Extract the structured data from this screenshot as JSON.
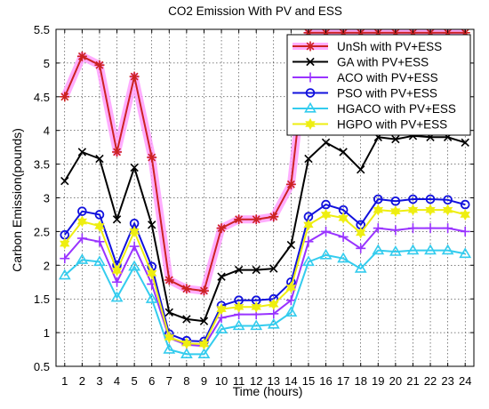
{
  "chart_data": {
    "type": "line",
    "title": "CO2 Emission With PV and ESS",
    "xlabel": "Time (hours)",
    "ylabel": "Carbon Emission(pounds)",
    "xlim": [
      0.5,
      24.5
    ],
    "ylim": [
      0.5,
      5.5
    ],
    "x": [
      1,
      2,
      3,
      4,
      5,
      6,
      7,
      8,
      9,
      10,
      11,
      12,
      13,
      14,
      15,
      16,
      17,
      18,
      19,
      20,
      21,
      22,
      23,
      24
    ],
    "xticks": [
      "1",
      "2",
      "3",
      "4",
      "5",
      "6",
      "7",
      "8",
      "9",
      "10",
      "11",
      "12",
      "13",
      "14",
      "15",
      "16",
      "17",
      "18",
      "19",
      "20",
      "21",
      "22",
      "23",
      "24"
    ],
    "yticks": [
      "0.5",
      "1",
      "1.5",
      "2",
      "2.5",
      "3",
      "3.5",
      "4",
      "4.5",
      "5",
      "5.5"
    ],
    "grid": true,
    "legend_position": "top-right",
    "series": [
      {
        "name": "UnSh with PV+ESS",
        "color": "#cc2222",
        "glow": "#ff99ff",
        "marker": "asterisk",
        "values": [
          4.5,
          5.1,
          4.97,
          3.68,
          4.8,
          3.6,
          1.78,
          1.65,
          1.62,
          2.55,
          2.68,
          2.68,
          2.72,
          3.2,
          5.45,
          5.45,
          5.45,
          5.45,
          5.45,
          5.45,
          5.45,
          5.45,
          5.45,
          5.45
        ]
      },
      {
        "name": "GA with PV+ESS",
        "color": "#000000",
        "glow": null,
        "marker": "x",
        "values": [
          3.25,
          3.68,
          3.58,
          2.68,
          3.45,
          2.6,
          1.3,
          1.2,
          1.17,
          1.83,
          1.93,
          1.93,
          1.95,
          2.3,
          3.58,
          3.82,
          3.68,
          3.42,
          3.9,
          3.87,
          3.92,
          3.9,
          3.9,
          3.82
        ]
      },
      {
        "name": "ACO with PV+ESS",
        "color": "#9933ff",
        "glow": null,
        "marker": "plus",
        "values": [
          2.1,
          2.4,
          2.35,
          1.75,
          2.28,
          1.72,
          0.92,
          0.82,
          0.8,
          1.22,
          1.27,
          1.27,
          1.28,
          1.48,
          2.35,
          2.5,
          2.42,
          2.25,
          2.55,
          2.52,
          2.55,
          2.55,
          2.55,
          2.5
        ]
      },
      {
        "name": "PSO with PV+ESS",
        "color": "#1111dd",
        "glow": null,
        "marker": "circle",
        "values": [
          2.45,
          2.8,
          2.75,
          2.0,
          2.62,
          1.98,
          0.98,
          0.88,
          0.87,
          1.4,
          1.48,
          1.48,
          1.5,
          1.75,
          2.72,
          2.9,
          2.82,
          2.6,
          2.98,
          2.95,
          2.98,
          2.98,
          2.97,
          2.9
        ]
      },
      {
        "name": "HGACO with PV+ESS",
        "color": "#33ccee",
        "glow": null,
        "marker": "triangle",
        "values": [
          1.85,
          2.08,
          2.05,
          1.52,
          1.98,
          1.5,
          0.75,
          0.68,
          0.68,
          1.05,
          1.1,
          1.1,
          1.12,
          1.3,
          2.05,
          2.15,
          2.1,
          1.95,
          2.22,
          2.2,
          2.22,
          2.22,
          2.22,
          2.17
        ]
      },
      {
        "name": "HGPO with PV+ESS",
        "color": "#eeee11",
        "glow": null,
        "marker": "hexagram",
        "values": [
          2.32,
          2.65,
          2.58,
          1.92,
          2.5,
          1.88,
          0.93,
          0.84,
          0.83,
          1.35,
          1.38,
          1.38,
          1.42,
          1.67,
          2.6,
          2.75,
          2.7,
          2.48,
          2.82,
          2.8,
          2.82,
          2.82,
          2.82,
          2.75
        ]
      }
    ]
  }
}
